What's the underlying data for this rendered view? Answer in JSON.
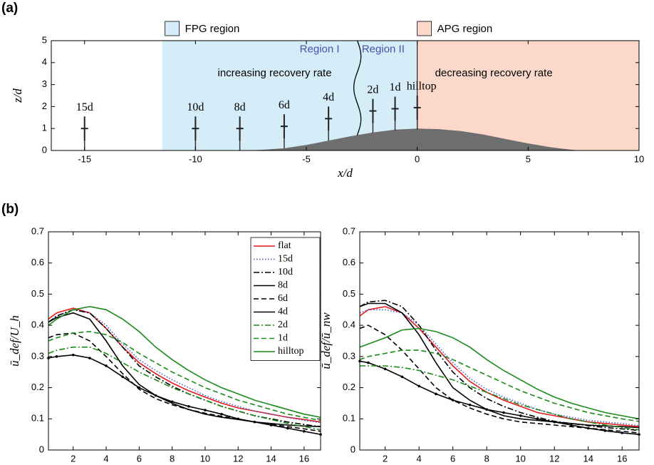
{
  "chart_data": [
    {
      "type": "terrain",
      "panel_label": "(a)",
      "xlabel": "x/d",
      "ylabel": "z/d",
      "xlim": [
        -16.5,
        10
      ],
      "ylim": [
        0,
        5
      ],
      "xticks": [
        -15,
        -10,
        -5,
        0,
        5,
        10
      ],
      "yticks": [
        0,
        1,
        2,
        3,
        4,
        5
      ],
      "regions": [
        {
          "name": "FPG region",
          "color": "#d5edf8",
          "xlim": [
            -11.5,
            0
          ]
        },
        {
          "name": "APG region",
          "color": "#fbd8ca",
          "xlim": [
            0,
            10
          ]
        }
      ],
      "boundary_x": -2.7,
      "annotations": [
        {
          "text": "Region I",
          "x": -5.3,
          "y": 4.6
        },
        {
          "text": "Region II",
          "x": -2.5,
          "y": 4.6
        },
        {
          "text": "increasing recovery rate",
          "x": -9,
          "y": 3.5
        },
        {
          "text": "decreasing recovery rate",
          "x": 0.8,
          "y": 3.5
        }
      ],
      "hill": {
        "x": [
          -8,
          -7,
          -6,
          -5,
          -4,
          -3,
          -2,
          -1,
          0,
          1,
          2,
          3,
          4,
          5,
          6,
          7,
          7.5
        ],
        "values": [
          0,
          0.03,
          0.1,
          0.25,
          0.45,
          0.65,
          0.82,
          0.95,
          1.0,
          0.97,
          0.88,
          0.72,
          0.52,
          0.32,
          0.15,
          0.03,
          0
        ],
        "color": "#6e6e6e"
      },
      "turbines": [
        {
          "label": "15d",
          "x": -15,
          "z": 1
        },
        {
          "label": "10d",
          "x": -10,
          "z": 1
        },
        {
          "label": "8d",
          "x": -8,
          "z": 1
        },
        {
          "label": "6d",
          "x": -6,
          "z": 1.1
        },
        {
          "label": "4d",
          "x": -4,
          "z": 1.45
        },
        {
          "label": "2d",
          "x": -2,
          "z": 1.8
        },
        {
          "label": "1d",
          "x": -1,
          "z": 1.9
        },
        {
          "label": "hilltop",
          "x": 0,
          "z": 1.95
        }
      ]
    },
    {
      "type": "line",
      "panel_label": "(b)",
      "xlabel": "x/d",
      "ylabel": "ū_def/U_h",
      "legend": true,
      "xlim": [
        0.5,
        17
      ],
      "ylim": [
        0,
        0.7
      ],
      "xticks": [
        2,
        4,
        6,
        8,
        10,
        12,
        14,
        16
      ],
      "yticks": [
        0,
        0.1,
        0.2,
        0.3,
        0.4,
        0.5,
        0.6,
        0.7
      ],
      "x": [
        0.5,
        1,
        2,
        3,
        4,
        5,
        6,
        7,
        8,
        9,
        10,
        11,
        12,
        13,
        14,
        15,
        16,
        17
      ],
      "series": [
        {
          "name": "flat",
          "color": "#e8191b",
          "dash": "solid",
          "values": [
            0.42,
            0.44,
            0.455,
            0.44,
            0.39,
            0.33,
            0.28,
            0.245,
            0.215,
            0.19,
            0.17,
            0.15,
            0.135,
            0.125,
            0.115,
            0.105,
            0.098,
            0.09
          ]
        },
        {
          "name": "15d",
          "color": "#4b5bd0",
          "dash": "dotted",
          "values": [
            0.41,
            0.43,
            0.45,
            0.44,
            0.4,
            0.34,
            0.29,
            0.255,
            0.225,
            0.2,
            0.175,
            0.155,
            0.14,
            0.125,
            0.115,
            0.105,
            0.095,
            0.088
          ]
        },
        {
          "name": "10d",
          "color": "#000000",
          "dash": "dashdot",
          "values": [
            0.41,
            0.43,
            0.45,
            0.44,
            0.39,
            0.33,
            0.27,
            0.235,
            0.205,
            0.18,
            0.16,
            0.14,
            0.125,
            0.11,
            0.1,
            0.09,
            0.082,
            0.075
          ]
        },
        {
          "name": "8d",
          "color": "#000000",
          "dash": "solid",
          "values": [
            0.41,
            0.425,
            0.44,
            0.42,
            0.35,
            0.27,
            0.21,
            0.175,
            0.15,
            0.13,
            0.115,
            0.105,
            0.098,
            0.09,
            0.085,
            0.08,
            0.077,
            0.075
          ]
        },
        {
          "name": "6d",
          "color": "#000000",
          "dash": "dashed",
          "values": [
            0.36,
            0.37,
            0.375,
            0.35,
            0.3,
            0.245,
            0.195,
            0.165,
            0.145,
            0.13,
            0.118,
            0.108,
            0.1,
            0.09,
            0.082,
            0.075,
            0.068,
            0.06
          ]
        },
        {
          "name": "4d",
          "color": "#000000",
          "dash": "solid",
          "marker": true,
          "values": [
            0.295,
            0.3,
            0.305,
            0.295,
            0.27,
            0.235,
            0.2,
            0.175,
            0.155,
            0.14,
            0.128,
            0.115,
            0.1,
            0.09,
            0.08,
            0.07,
            0.06,
            0.05
          ]
        },
        {
          "name": "2d",
          "color": "#1a8a1a",
          "dash": "dashdot",
          "values": [
            0.31,
            0.32,
            0.33,
            0.33,
            0.31,
            0.28,
            0.25,
            0.225,
            0.2,
            0.18,
            0.16,
            0.14,
            0.125,
            0.11,
            0.098,
            0.085,
            0.075,
            0.065
          ]
        },
        {
          "name": "1d",
          "color": "#1a8a1a",
          "dash": "dashed",
          "values": [
            0.35,
            0.36,
            0.375,
            0.38,
            0.37,
            0.345,
            0.31,
            0.28,
            0.25,
            0.225,
            0.2,
            0.18,
            0.16,
            0.145,
            0.13,
            0.115,
            0.105,
            0.095
          ]
        },
        {
          "name": "hilltop",
          "color": "#1a8a1a",
          "dash": "solid",
          "values": [
            0.4,
            0.42,
            0.45,
            0.46,
            0.45,
            0.42,
            0.38,
            0.33,
            0.29,
            0.255,
            0.225,
            0.2,
            0.18,
            0.16,
            0.145,
            0.13,
            0.115,
            0.105
          ]
        }
      ]
    },
    {
      "type": "line",
      "xlabel": "x/d",
      "ylabel": "ū_def/ū_nw",
      "legend": false,
      "xlim": [
        0.5,
        17
      ],
      "ylim": [
        0,
        0.7
      ],
      "xticks": [
        2,
        4,
        6,
        8,
        10,
        12,
        14,
        16
      ],
      "yticks": [
        0,
        0.1,
        0.2,
        0.3,
        0.4,
        0.5,
        0.6,
        0.7
      ],
      "x": [
        0.5,
        1,
        2,
        3,
        4,
        5,
        6,
        7,
        8,
        9,
        10,
        11,
        12,
        13,
        14,
        15,
        16,
        17
      ],
      "series": [
        {
          "name": "flat",
          "color": "#e8191b",
          "dash": "solid",
          "values": [
            0.43,
            0.45,
            0.46,
            0.44,
            0.39,
            0.33,
            0.27,
            0.22,
            0.185,
            0.16,
            0.14,
            0.12,
            0.11,
            0.1,
            0.09,
            0.085,
            0.08,
            0.075
          ]
        },
        {
          "name": "15d",
          "color": "#4b5bd0",
          "dash": "dotted",
          "values": [
            0.44,
            0.45,
            0.45,
            0.44,
            0.4,
            0.34,
            0.28,
            0.23,
            0.195,
            0.17,
            0.15,
            0.13,
            0.115,
            0.105,
            0.095,
            0.09,
            0.085,
            0.078
          ]
        },
        {
          "name": "10d",
          "color": "#000000",
          "dash": "dashdot",
          "values": [
            0.46,
            0.475,
            0.48,
            0.46,
            0.4,
            0.32,
            0.25,
            0.2,
            0.165,
            0.14,
            0.12,
            0.105,
            0.092,
            0.085,
            0.078,
            0.072,
            0.068,
            0.063
          ]
        },
        {
          "name": "8d",
          "color": "#000000",
          "dash": "solid",
          "values": [
            0.46,
            0.47,
            0.47,
            0.44,
            0.37,
            0.28,
            0.2,
            0.16,
            0.13,
            0.11,
            0.1,
            0.095,
            0.09,
            0.085,
            0.08,
            0.077,
            0.075,
            0.072
          ]
        },
        {
          "name": "6d",
          "color": "#000000",
          "dash": "dashed",
          "values": [
            0.39,
            0.4,
            0.37,
            0.32,
            0.26,
            0.2,
            0.16,
            0.135,
            0.115,
            0.1,
            0.09,
            0.085,
            0.08,
            0.075,
            0.07,
            0.065,
            0.06,
            0.055
          ]
        },
        {
          "name": "4d",
          "color": "#000000",
          "dash": "solid",
          "marker": true,
          "values": [
            0.285,
            0.28,
            0.26,
            0.235,
            0.205,
            0.18,
            0.16,
            0.145,
            0.13,
            0.12,
            0.11,
            0.1,
            0.09,
            0.08,
            0.07,
            0.062,
            0.055,
            0.05
          ]
        },
        {
          "name": "2d",
          "color": "#1a8a1a",
          "dash": "dashdot",
          "values": [
            0.27,
            0.27,
            0.27,
            0.265,
            0.255,
            0.24,
            0.225,
            0.205,
            0.185,
            0.165,
            0.145,
            0.13,
            0.115,
            0.1,
            0.09,
            0.08,
            0.072,
            0.065
          ]
        },
        {
          "name": "1d",
          "color": "#1a8a1a",
          "dash": "dashed",
          "values": [
            0.29,
            0.3,
            0.31,
            0.32,
            0.32,
            0.31,
            0.29,
            0.265,
            0.24,
            0.215,
            0.19,
            0.17,
            0.15,
            0.135,
            0.12,
            0.11,
            0.1,
            0.092
          ]
        },
        {
          "name": "hilltop",
          "color": "#1a8a1a",
          "dash": "solid",
          "values": [
            0.33,
            0.34,
            0.36,
            0.385,
            0.39,
            0.38,
            0.36,
            0.33,
            0.29,
            0.255,
            0.225,
            0.195,
            0.17,
            0.15,
            0.135,
            0.12,
            0.11,
            0.1
          ]
        }
      ]
    }
  ]
}
